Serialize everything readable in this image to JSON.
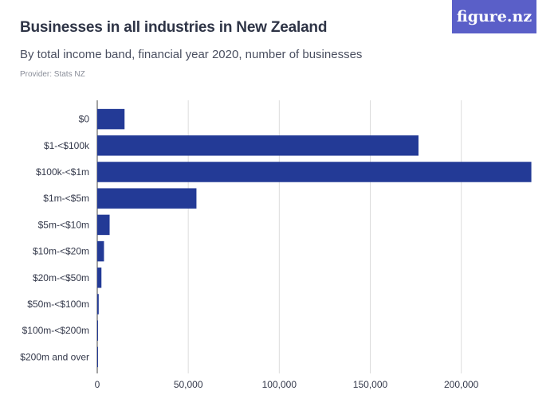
{
  "header": {
    "title": "Businesses in all industries in New Zealand",
    "subtitle": "By total income band, financial year 2020,  number of businesses",
    "provider": "Provider: Stats NZ",
    "logo_text": "figure.nz"
  },
  "colors": {
    "bar": "#233a96",
    "logo_bg": "#5a5fc8",
    "grid": "#dcdcdc"
  },
  "chart_data": {
    "type": "bar",
    "orientation": "horizontal",
    "categories": [
      "$0",
      "$1-<$100k",
      "$100k-<$1m",
      "$1m-<$5m",
      "$5m-<$10m",
      "$10m-<$20m",
      "$20m-<$50m",
      "$50m-<$100m",
      "$100m-<$200m",
      "$200m and over"
    ],
    "values": [
      15000,
      176500,
      238500,
      54500,
      6800,
      3700,
      2300,
      800,
      300,
      200
    ],
    "xlim": [
      0,
      240000
    ],
    "xticks": [
      0,
      50000,
      100000,
      150000,
      200000
    ],
    "xtick_labels": [
      "0",
      "50,000",
      "100,000",
      "150,000",
      "200,000"
    ],
    "grid": true
  }
}
